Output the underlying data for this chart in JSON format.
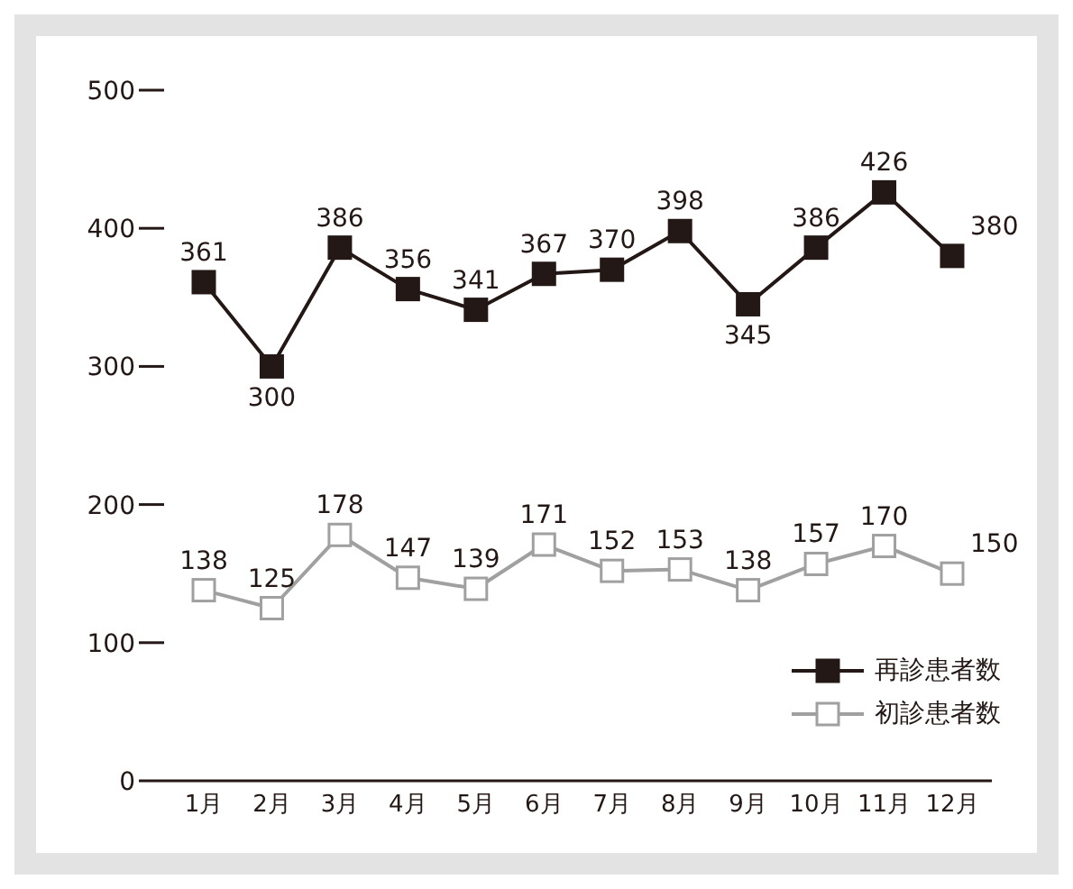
{
  "chart_data": {
    "type": "line",
    "categories": [
      "1月",
      "2月",
      "3月",
      "4月",
      "5月",
      "6月",
      "7月",
      "8月",
      "9月",
      "10月",
      "11月",
      "12月"
    ],
    "series": [
      {
        "name": "再診患者数",
        "color": "#231815",
        "values": [
          361,
          300,
          386,
          356,
          341,
          367,
          370,
          398,
          345,
          386,
          426,
          380
        ]
      },
      {
        "name": "初診患者数",
        "color": "#a0a0a0",
        "values": [
          138,
          125,
          178,
          147,
          139,
          171,
          152,
          153,
          138,
          157,
          170,
          150
        ]
      }
    ],
    "ylim": [
      0,
      500
    ],
    "yticks": [
      0,
      100,
      200,
      300,
      400,
      500
    ],
    "legend": "bottom right",
    "marker": "square",
    "line_style": "solid",
    "data_labels": true
  }
}
